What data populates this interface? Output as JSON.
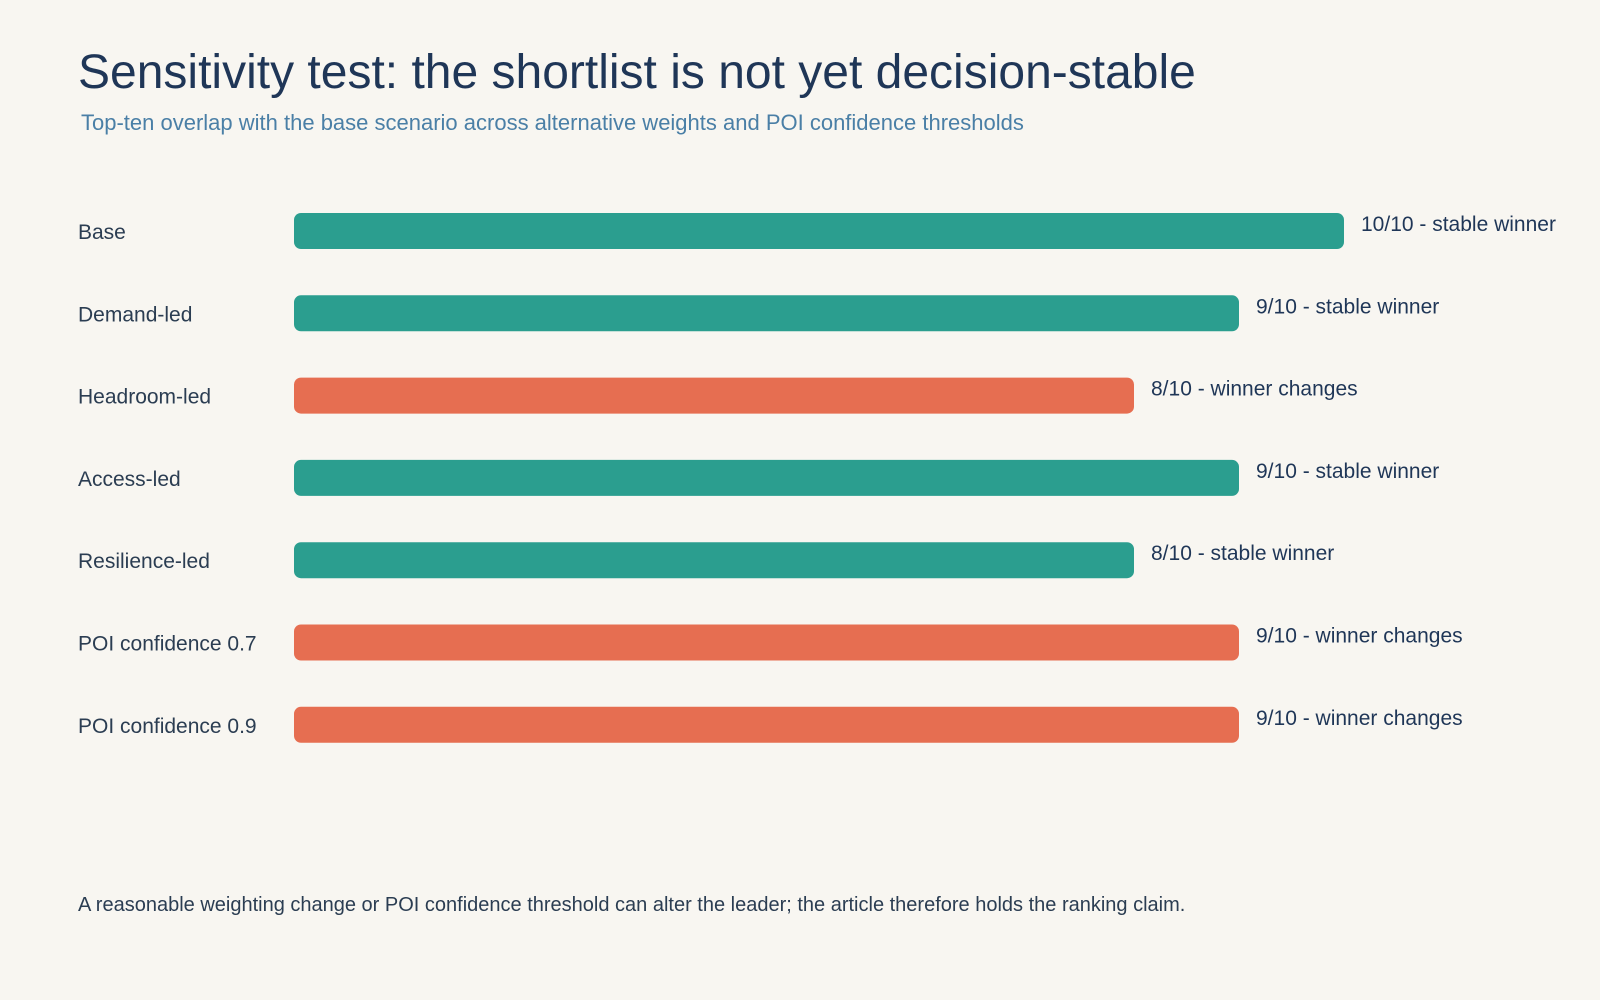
{
  "title": "Sensitivity test: the shortlist is not yet decision-stable",
  "subtitle": "Top-ten overlap with the base scenario across alternative weights and POI confidence thresholds",
  "footnote": "A reasonable weighting change or POI confidence threshold can alter the leader; the article therefore holds the ranking claim.",
  "colors": {
    "stable": "#2b9e8f",
    "changes": "#e66e51",
    "background": "#f8f6f1",
    "title": "#1f3657",
    "subtitle": "#4a7fa6"
  },
  "chart_data": {
    "type": "bar",
    "orientation": "horizontal",
    "categories": [
      "Base",
      "Demand-led",
      "Headroom-led",
      "Access-led",
      "Resilience-led",
      "POI confidence 0.7",
      "POI confidence 0.9"
    ],
    "values": [
      10,
      9,
      8,
      9,
      8,
      9,
      9
    ],
    "max": 10,
    "status": [
      "stable",
      "stable",
      "changes",
      "stable",
      "stable",
      "changes",
      "changes"
    ],
    "labels": [
      "10/10 - stable winner",
      "9/10 - stable winner",
      "8/10 - winner changes",
      "9/10 - stable winner",
      "8/10 - stable winner",
      "9/10 - winner changes",
      "9/10 - winner changes"
    ],
    "xlim": [
      0,
      10
    ],
    "grid": false,
    "legend": "none"
  }
}
